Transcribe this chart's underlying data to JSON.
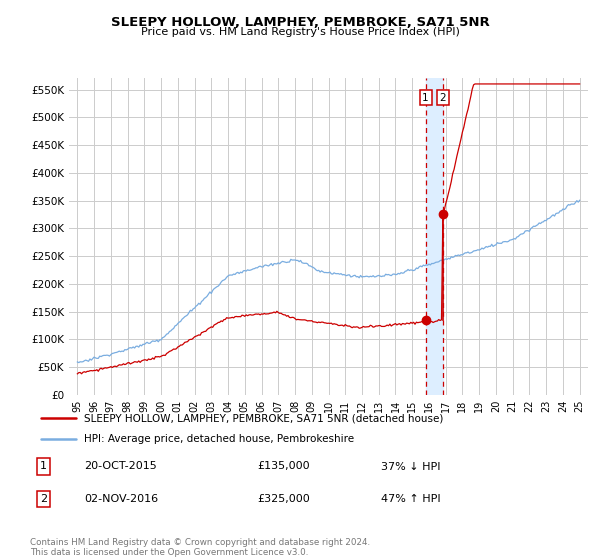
{
  "title": "SLEEPY HOLLOW, LAMPHEY, PEMBROKE, SA71 5NR",
  "subtitle": "Price paid vs. HM Land Registry's House Price Index (HPI)",
  "ylim": [
    0,
    570000
  ],
  "yticks": [
    0,
    50000,
    100000,
    150000,
    200000,
    250000,
    300000,
    350000,
    400000,
    450000,
    500000,
    550000
  ],
  "ytick_labels": [
    "£0",
    "£50K",
    "£100K",
    "£150K",
    "£200K",
    "£250K",
    "£300K",
    "£350K",
    "£400K",
    "£450K",
    "£500K",
    "£550K"
  ],
  "sale1_x": 2015.8,
  "sale1_y": 135000,
  "sale2_x": 2016.84,
  "sale2_y": 325000,
  "sale1_text": "20-OCT-2015",
  "sale1_amount": "£135,000",
  "sale1_hpi": "37% ↓ HPI",
  "sale2_text": "02-NOV-2016",
  "sale2_amount": "£325,000",
  "sale2_hpi": "47% ↑ HPI",
  "legend_label1": "SLEEPY HOLLOW, LAMPHEY, PEMBROKE, SA71 5NR (detached house)",
  "legend_label2": "HPI: Average price, detached house, Pembrokeshire",
  "footer": "Contains HM Land Registry data © Crown copyright and database right 2024.\nThis data is licensed under the Open Government Licence v3.0.",
  "line_color_red": "#cc0000",
  "line_color_blue": "#7aade0",
  "shade_color": "#ddeeff",
  "background_color": "#ffffff",
  "grid_color": "#cccccc",
  "xmin": 1994.5,
  "xmax": 2025.5
}
